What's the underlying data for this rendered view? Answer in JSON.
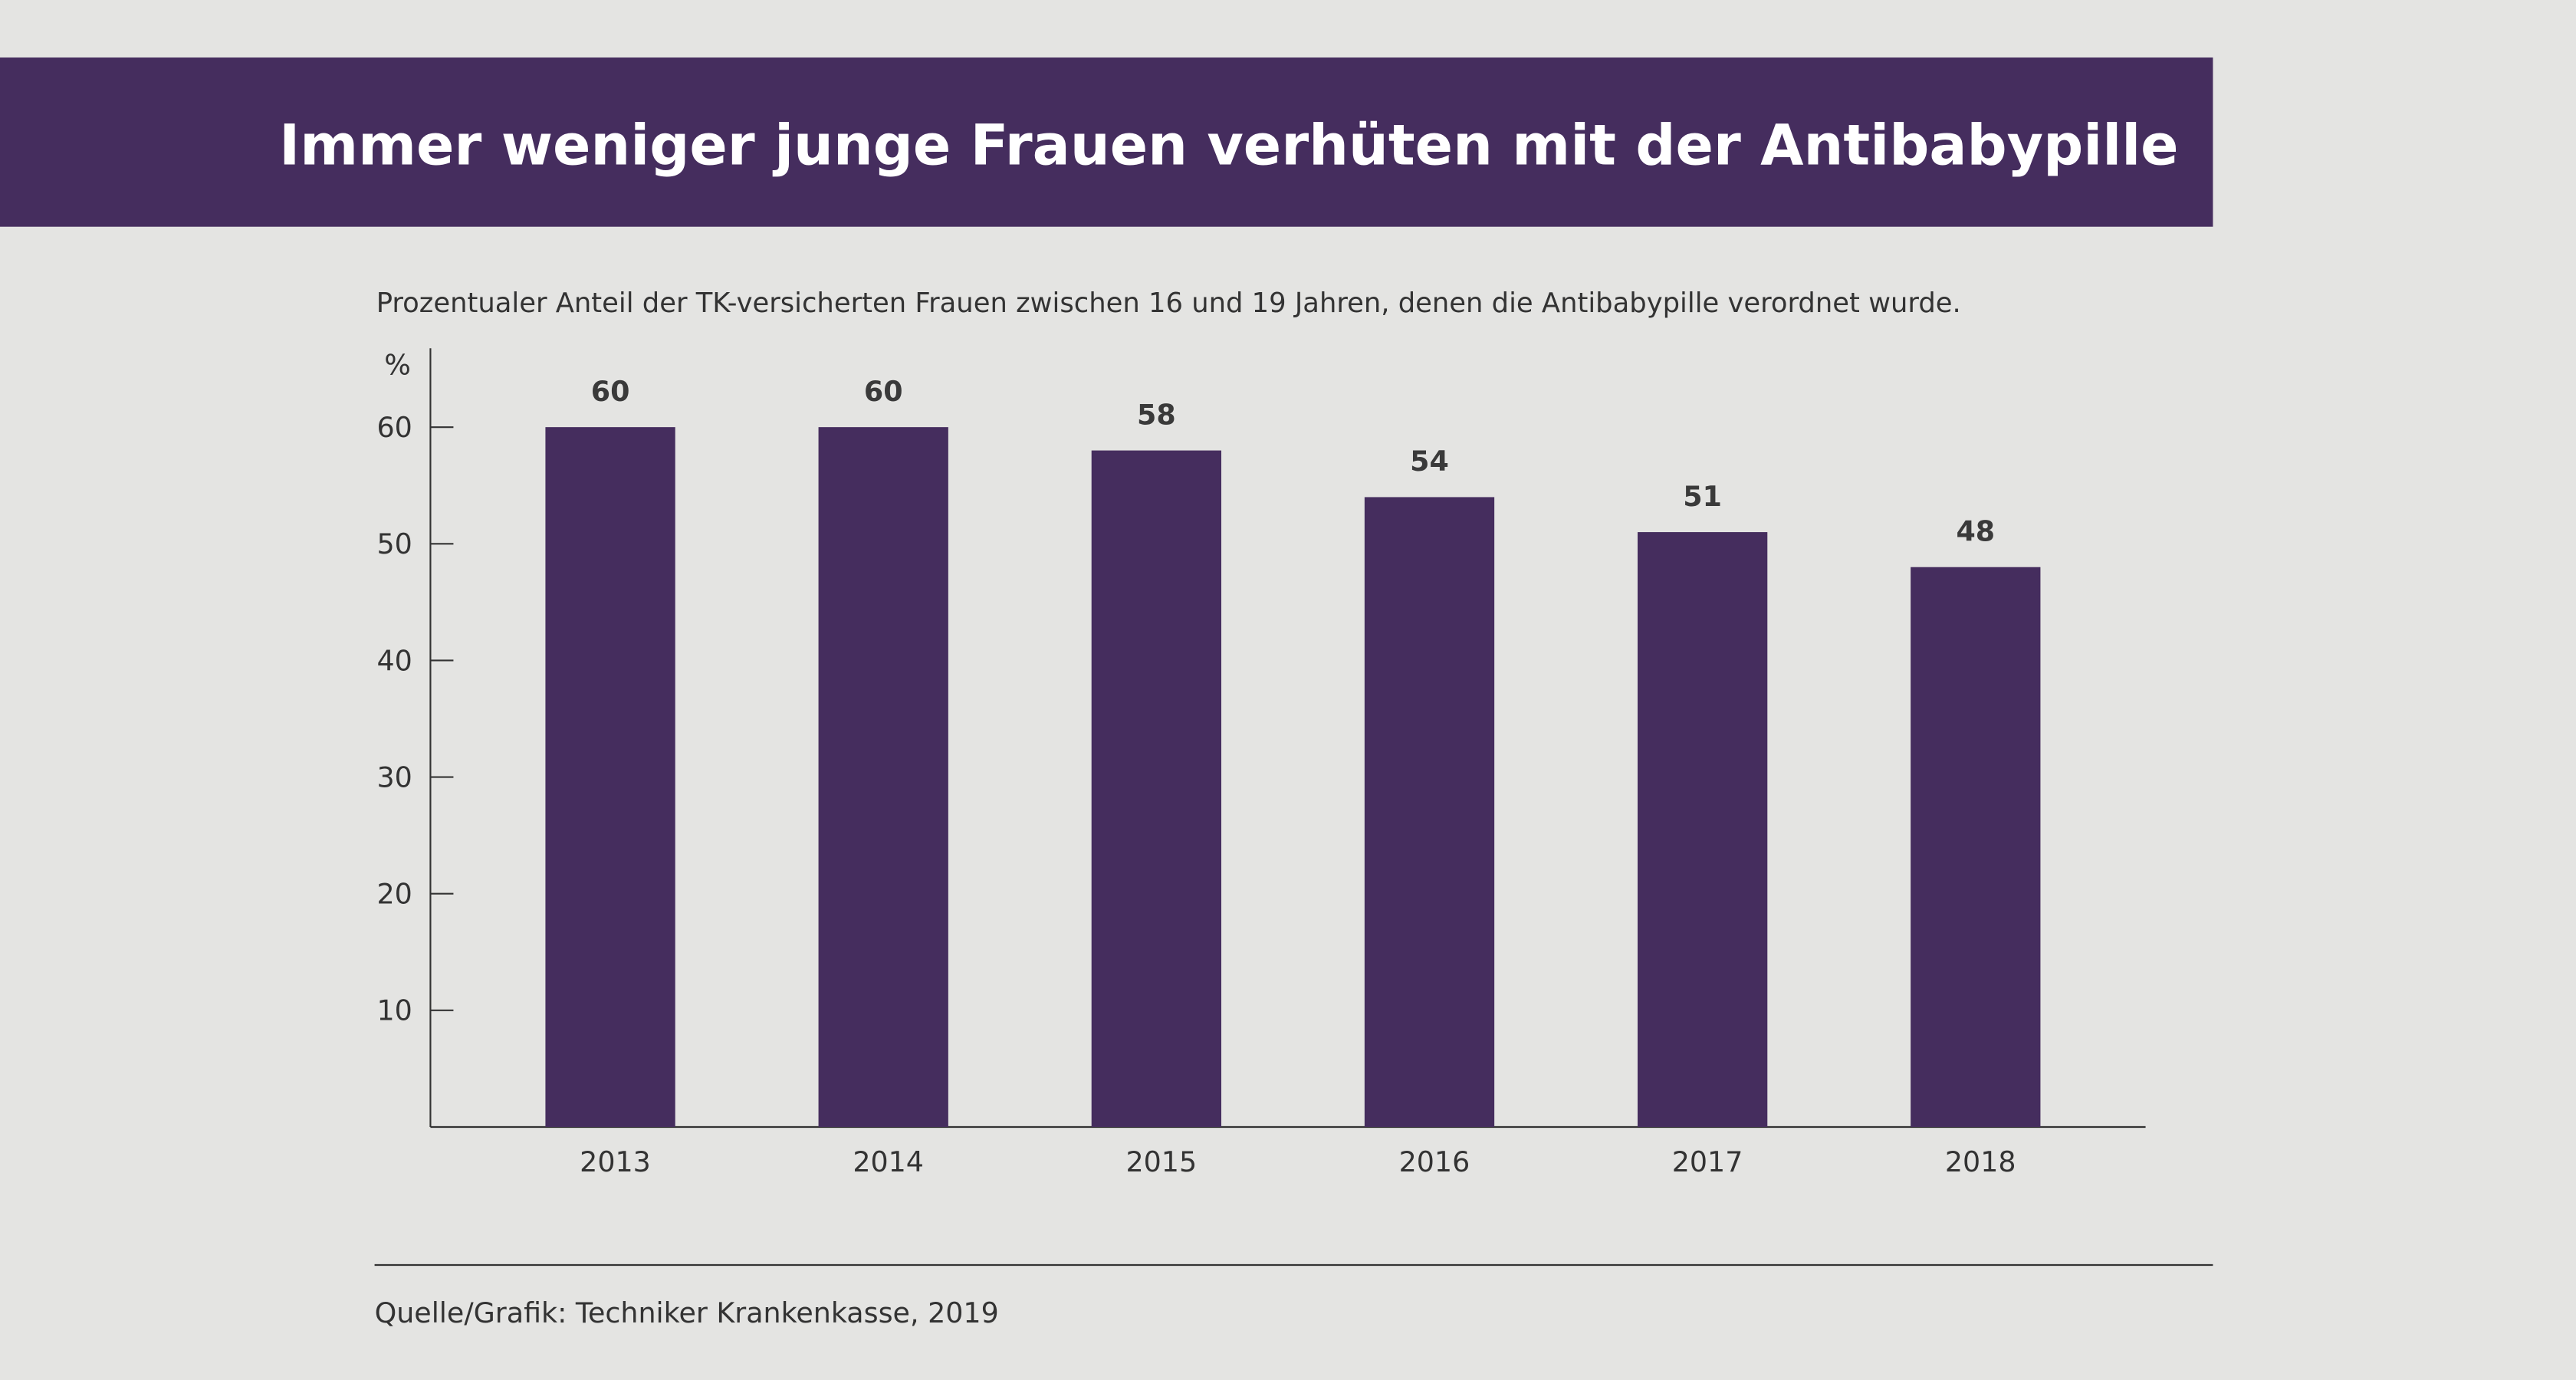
{
  "chart_data": {
    "type": "bar",
    "title": "Immer weniger junge Frauen verhüten mit der Antibabypille",
    "subtitle": "Prozentualer Anteil der TK-versicherten Frauen zwischen 16 und 19 Jahren, denen die Antibabypille verordnet wurde.",
    "ylabel": "%",
    "xlabel": "",
    "categories": [
      "2013",
      "2014",
      "2015",
      "2016",
      "2017",
      "2018"
    ],
    "values": [
      60,
      60,
      58,
      54,
      51,
      48
    ],
    "yticks": [
      10,
      20,
      30,
      40,
      50,
      60
    ],
    "ylim": [
      0,
      67
    ],
    "grid": false,
    "source": "Quelle/Grafik: Techniker Krankenkasse, 2019",
    "colors": {
      "bar": "#452d5e",
      "banner": "#452d5e",
      "background": "#e4e4e2"
    }
  }
}
